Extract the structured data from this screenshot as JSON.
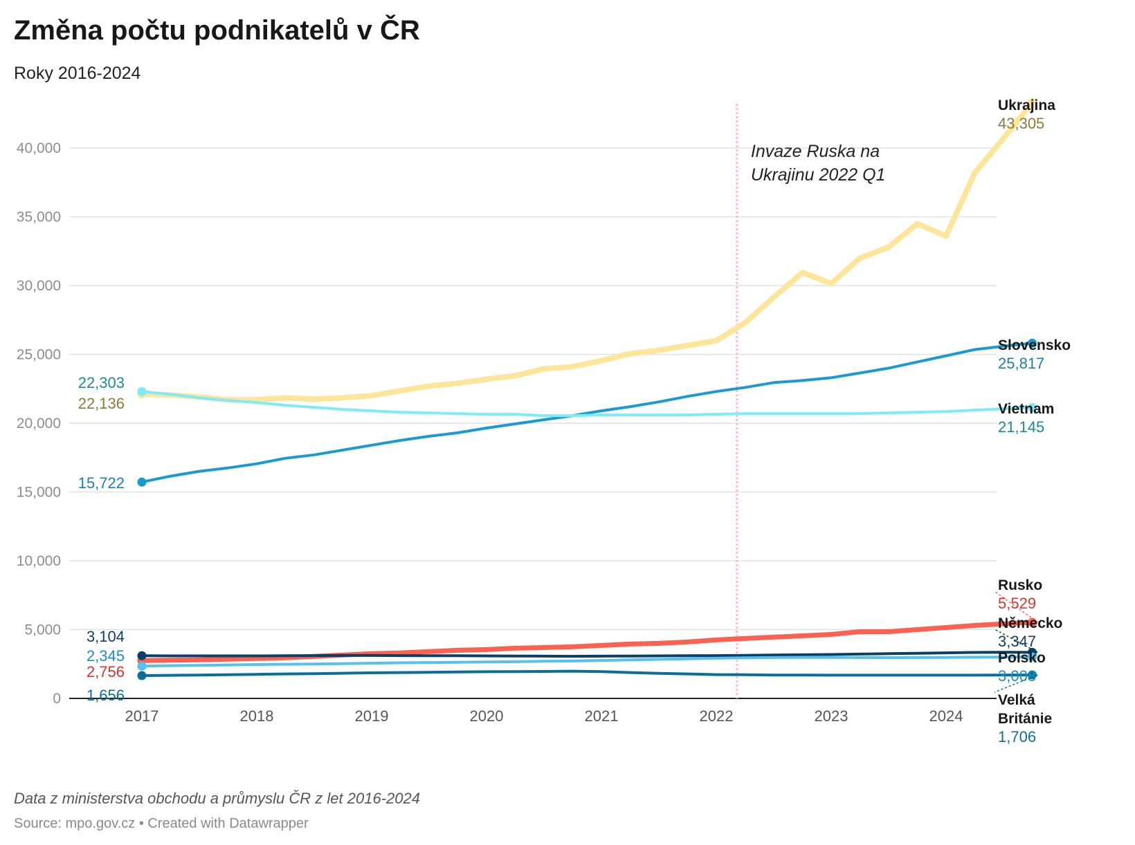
{
  "title": "Změna počtu podnikatelů v ČR",
  "subtitle": "Roky 2016-2024",
  "notes": "Data z ministerstva obchodu a průmyslu ČR z let 2016-2024",
  "source": "Source: mpo.gov.cz • Created with Datawrapper",
  "chart_data": {
    "type": "line",
    "title": "Změna počtu podnikatelů v ČR",
    "subtitle": "Roky 2016-2024",
    "x_ticks": [
      "2017",
      "2018",
      "2019",
      "2020",
      "2021",
      "2022",
      "2023",
      "2024"
    ],
    "y_ticks": [
      "0",
      "5,000",
      "10,000",
      "15,000",
      "20,000",
      "25,000",
      "30,000",
      "35,000",
      "40,000"
    ],
    "ylim": [
      0,
      44000
    ],
    "xlim": [
      2016.9,
      2024.9
    ],
    "grid": true,
    "x": [
      2017.0,
      2017.25,
      2017.5,
      2017.75,
      2018.0,
      2018.25,
      2018.5,
      2018.75,
      2019.0,
      2019.25,
      2019.5,
      2019.75,
      2020.0,
      2020.25,
      2020.5,
      2020.75,
      2021.0,
      2021.25,
      2021.5,
      2021.75,
      2022.0,
      2022.25,
      2022.5,
      2022.75,
      2023.0,
      2023.25,
      2023.5,
      2023.75,
      2024.0,
      2024.25,
      2024.5,
      2024.75
    ],
    "series": [
      {
        "name": "Ukrajina",
        "color": "#fde69a",
        "width": 8,
        "start_label": "22,136",
        "start_label_color": "#8a7a3a",
        "end_label": "43,305",
        "end_label_color": "#8a7a3a",
        "values": [
          22136,
          22050,
          21900,
          21700,
          21700,
          21850,
          21750,
          21850,
          22000,
          22350,
          22700,
          22900,
          23200,
          23450,
          23950,
          24100,
          24550,
          25050,
          25300,
          25650,
          26000,
          27300,
          29150,
          30950,
          30150,
          32000,
          32800,
          34500,
          33600,
          38200,
          40700,
          43305
        ]
      },
      {
        "name": "Slovensko",
        "color": "#189ad3",
        "width": 4,
        "start_label": "15,722",
        "start_label_color": "#1a7fb0",
        "end_label": "25,817",
        "end_label_color": "#1a7fb0",
        "values": [
          15722,
          16150,
          16500,
          16750,
          17050,
          17450,
          17700,
          18050,
          18400,
          18750,
          19050,
          19300,
          19650,
          19950,
          20250,
          20550,
          20900,
          21200,
          21550,
          21950,
          22300,
          22600,
          22950,
          23100,
          23300,
          23650,
          24000,
          24450,
          24900,
          25350,
          25600,
          25817
        ]
      },
      {
        "name": "Vietnam",
        "color": "#7eebf8",
        "width": 4,
        "start_label": "22,303",
        "start_label_color": "#1a8a96",
        "end_label": "21,145",
        "end_label_color": "#1a8a96",
        "values": [
          22303,
          22100,
          21850,
          21650,
          21500,
          21300,
          21150,
          21000,
          20900,
          20800,
          20750,
          20700,
          20650,
          20650,
          20550,
          20550,
          20600,
          20600,
          20600,
          20600,
          20650,
          20700,
          20700,
          20700,
          20700,
          20700,
          20750,
          20800,
          20850,
          20950,
          21050,
          21145
        ]
      },
      {
        "name": "Rusko",
        "color": "#fa6150",
        "width": 7,
        "start_label": "2,756",
        "start_label_color": "#d8332b",
        "end_label": "5,529",
        "end_label_color": "#d8332b",
        "values": [
          2756,
          2780,
          2800,
          2850,
          2900,
          2950,
          3050,
          3150,
          3250,
          3300,
          3400,
          3500,
          3550,
          3650,
          3700,
          3750,
          3850,
          3950,
          4000,
          4100,
          4250,
          4350,
          4450,
          4550,
          4650,
          4850,
          4850,
          5000,
          5150,
          5300,
          5420,
          5529
        ]
      },
      {
        "name": "Německo",
        "color": "#0b3f66",
        "width": 4,
        "start_label": "3,104",
        "start_label_color": "#0b3f66",
        "end_label": "3,347",
        "end_label_color": "#0b3f66",
        "values": [
          3104,
          3090,
          3090,
          3090,
          3090,
          3100,
          3110,
          3120,
          3120,
          3110,
          3100,
          3100,
          3090,
          3080,
          3070,
          3060,
          3070,
          3080,
          3090,
          3100,
          3110,
          3130,
          3150,
          3170,
          3190,
          3220,
          3250,
          3280,
          3310,
          3340,
          3350,
          3347
        ]
      },
      {
        "name": "Polsko",
        "color": "#56c1ee",
        "width": 4,
        "start_label": "2,345",
        "start_label_color": "#1a8fc0",
        "end_label": "3,008",
        "end_label_color": "#1a8fc0",
        "values": [
          2345,
          2380,
          2400,
          2430,
          2460,
          2480,
          2500,
          2530,
          2560,
          2590,
          2610,
          2630,
          2650,
          2670,
          2700,
          2720,
          2760,
          2800,
          2840,
          2880,
          2920,
          2950,
          2970,
          2980,
          2980,
          2970,
          2960,
          2970,
          2980,
          2990,
          3000,
          3008
        ]
      },
      {
        "name": "Velká Británie",
        "color": "#0a6e9a",
        "width": 4,
        "start_label": "1,656",
        "start_label_color": "#0a6e9a",
        "end_label": "1,706",
        "end_label_color": "#0a6e9a",
        "values": [
          1656,
          1680,
          1700,
          1720,
          1750,
          1780,
          1800,
          1830,
          1860,
          1880,
          1900,
          1920,
          1940,
          1950,
          1960,
          1980,
          1950,
          1880,
          1820,
          1780,
          1730,
          1720,
          1700,
          1700,
          1690,
          1690,
          1690,
          1690,
          1690,
          1690,
          1700,
          1706
        ]
      }
    ],
    "annotations": [
      {
        "x": 2022.18,
        "text_lines": [
          "Invaze Ruska na",
          "Ukrajinu 2022 Q1"
        ],
        "line_color": "#f9b8e3"
      }
    ]
  }
}
